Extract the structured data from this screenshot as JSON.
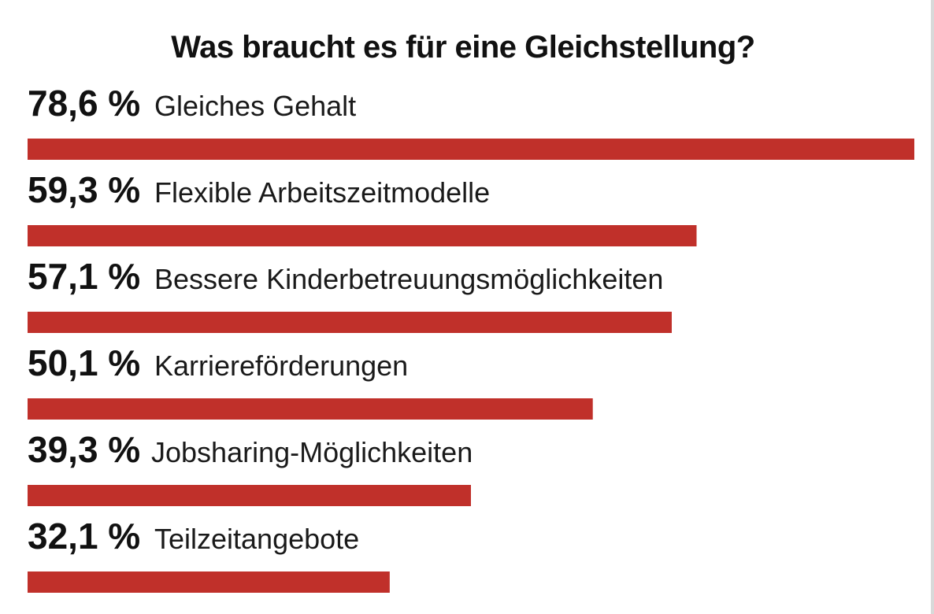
{
  "chart_data": {
    "type": "bar",
    "orientation": "horizontal",
    "title": "Was braucht es für eine Gleichstellung?",
    "categories": [
      "Gleiches Gehalt",
      "Flexible Arbeitszeitmodelle",
      "Bessere Kinderbetreuungsmöglichkeiten",
      "Karriereförderungen",
      "Jobsharing-Möglichkeiten",
      "Teilzeitangebote"
    ],
    "values": [
      78.6,
      59.3,
      57.1,
      50.1,
      39.3,
      32.1
    ],
    "value_labels": [
      "78,6 %",
      "59,3 %",
      "57,1 %",
      "50,1 %",
      "39,3 %",
      "32,1 %"
    ],
    "xlim": [
      0,
      78.6
    ],
    "bar_color": "#c0302a",
    "grid": false,
    "legend": "none"
  }
}
